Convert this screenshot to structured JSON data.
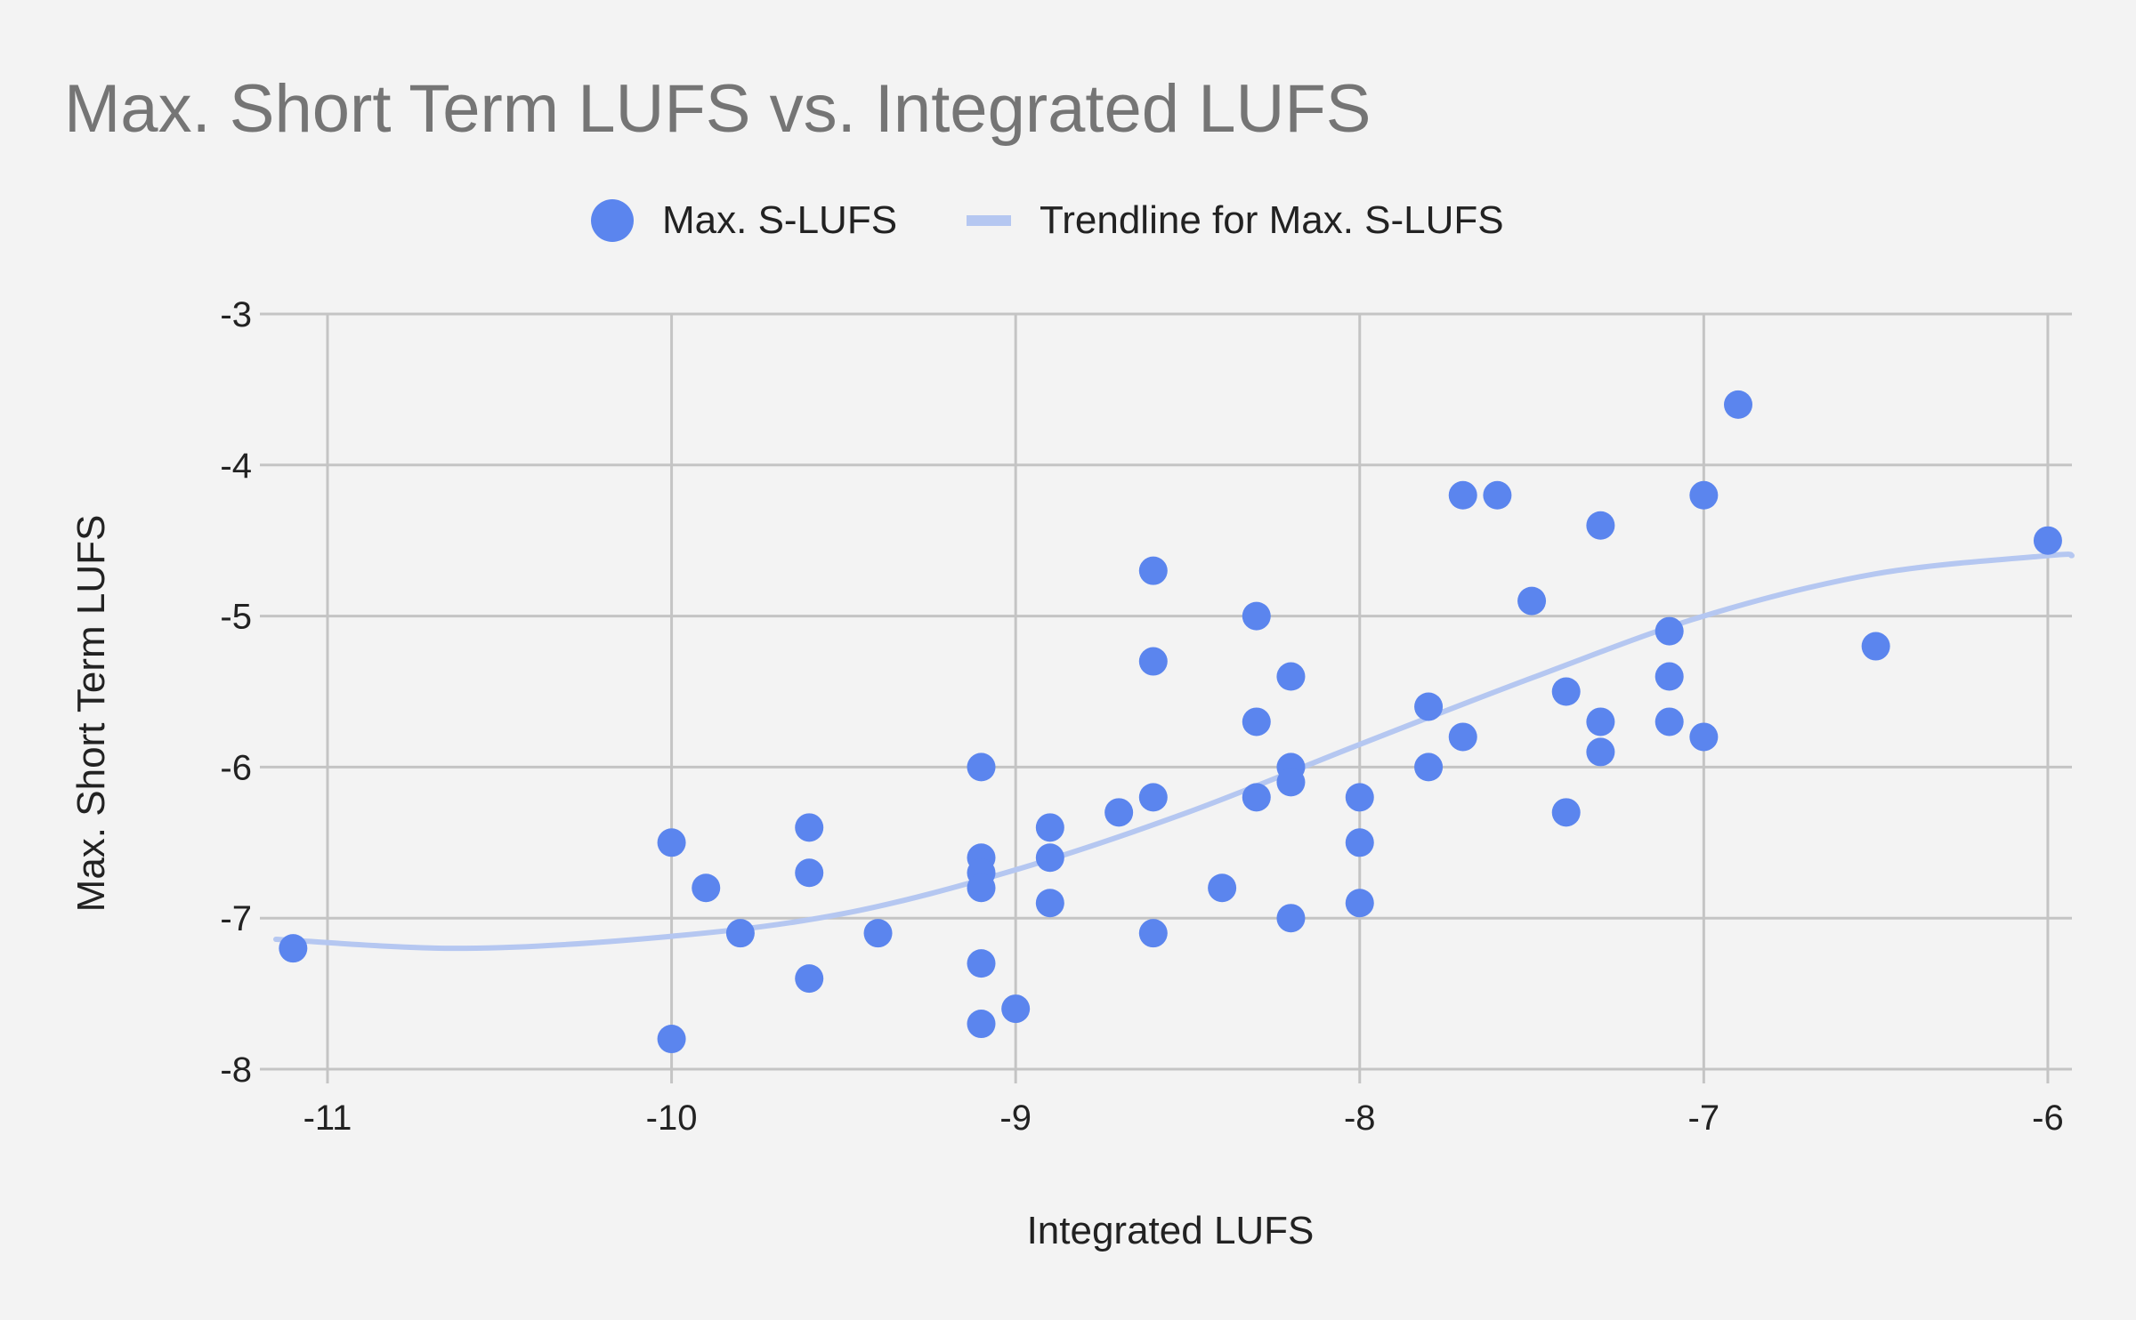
{
  "chart_data": {
    "type": "scatter",
    "title": "Max. Short Term LUFS vs. Integrated LUFS",
    "xlabel": "Integrated LUFS",
    "ylabel": "Max. Short Term LUFS",
    "xlim": [
      -11.15,
      -5.93
    ],
    "ylim": [
      -8,
      -3
    ],
    "x_ticks": [
      -11,
      -10,
      -9,
      -8,
      -7,
      -6
    ],
    "y_ticks": [
      -3,
      -4,
      -5,
      -6,
      -7,
      -8
    ],
    "x_tick_labels": [
      "-11",
      "-10",
      "-9",
      "-8",
      "-7",
      "-6"
    ],
    "y_tick_labels": [
      "-3",
      "-4",
      "-5",
      "-6",
      "-7",
      "-8"
    ],
    "grid": true,
    "legend_position": "top",
    "colors": {
      "points": "#5b85ee",
      "trendline": "#b5c7f1"
    },
    "series": [
      {
        "name": "Max. S-LUFS",
        "type": "scatter",
        "x": [
          -11.1,
          -10.0,
          -10.0,
          -9.9,
          -9.8,
          -9.6,
          -9.6,
          -9.6,
          -9.4,
          -9.1,
          -9.1,
          -9.1,
          -9.1,
          -9.1,
          -9.1,
          -9.0,
          -8.9,
          -8.9,
          -8.9,
          -8.7,
          -8.6,
          -8.6,
          -8.6,
          -8.6,
          -8.4,
          -8.3,
          -8.3,
          -8.3,
          -8.2,
          -8.2,
          -8.2,
          -8.2,
          -8.0,
          -8.0,
          -8.0,
          -7.8,
          -7.8,
          -7.7,
          -7.7,
          -7.6,
          -7.5,
          -7.4,
          -7.4,
          -7.3,
          -7.3,
          -7.3,
          -7.1,
          -7.1,
          -7.1,
          -7.0,
          -7.0,
          -6.9,
          -6.5,
          -6.0
        ],
        "y": [
          -7.2,
          -6.5,
          -7.8,
          -6.8,
          -7.1,
          -6.4,
          -6.7,
          -7.4,
          -7.1,
          -6.0,
          -6.6,
          -6.7,
          -6.8,
          -7.3,
          -7.7,
          -7.6,
          -6.4,
          -6.6,
          -6.9,
          -6.3,
          -4.7,
          -5.3,
          -6.2,
          -7.1,
          -6.8,
          -5.0,
          -5.7,
          -6.2,
          -5.4,
          -6.0,
          -6.1,
          -7.0,
          -6.2,
          -6.5,
          -6.9,
          -5.6,
          -6.0,
          -4.2,
          -5.8,
          -4.2,
          -4.9,
          -5.5,
          -6.3,
          -4.4,
          -5.7,
          -5.9,
          -5.1,
          -5.4,
          -5.7,
          -4.2,
          -5.8,
          -3.6,
          -5.2,
          -4.5
        ]
      },
      {
        "name": "Trendline for Max. S-LUFS",
        "type": "line",
        "x": [
          -11.15,
          -10.6,
          -10.0,
          -9.5,
          -9.0,
          -8.5,
          -8.0,
          -7.5,
          -7.0,
          -6.5,
          -6.0,
          -5.93
        ],
        "y": [
          -7.14,
          -7.2,
          -7.12,
          -6.97,
          -6.68,
          -6.3,
          -5.85,
          -5.41,
          -5.0,
          -4.72,
          -4.6,
          -4.6
        ]
      }
    ]
  }
}
